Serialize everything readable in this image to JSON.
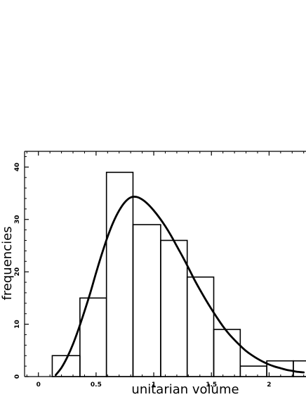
{
  "chart_data": {
    "type": "bar",
    "title": "",
    "xlabel": "unitarian volume",
    "ylabel": "frequencies",
    "xlim": [
      -0.12,
      2.32
    ],
    "ylim": [
      0,
      43
    ],
    "x_major_ticks": [
      0,
      0.5,
      1,
      1.5,
      2
    ],
    "x_tick_labels": [
      "0",
      "0.5",
      "1",
      "1.5",
      "2"
    ],
    "x_minor_step": 0.1,
    "y_major_ticks": [
      0,
      10,
      20,
      30,
      40
    ],
    "y_tick_labels": [
      "0",
      "10",
      "20",
      "30",
      "40"
    ],
    "y_minor_step": 2,
    "grid": false,
    "legend": "none",
    "bins": [
      {
        "start": 0.12,
        "end": 0.36,
        "value": 4
      },
      {
        "start": 0.36,
        "end": 0.59,
        "value": 15
      },
      {
        "start": 0.59,
        "end": 0.82,
        "value": 39
      },
      {
        "start": 0.82,
        "end": 1.06,
        "value": 29
      },
      {
        "start": 1.06,
        "end": 1.29,
        "value": 26
      },
      {
        "start": 1.29,
        "end": 1.52,
        "value": 19
      },
      {
        "start": 1.52,
        "end": 1.75,
        "value": 9
      },
      {
        "start": 1.75,
        "end": 1.98,
        "value": 2
      },
      {
        "start": 1.98,
        "end": 2.21,
        "value": 3
      },
      {
        "start": 2.21,
        "end": 2.44,
        "value": 3
      }
    ],
    "fit_curve": {
      "x": [
        0.15,
        0.2,
        0.25,
        0.3,
        0.35,
        0.4,
        0.45,
        0.5,
        0.55,
        0.6,
        0.65,
        0.7,
        0.75,
        0.8,
        0.85,
        0.9,
        0.95,
        1.0,
        1.05,
        1.1,
        1.15,
        1.2,
        1.25,
        1.3,
        1.35,
        1.4,
        1.45,
        1.5,
        1.55,
        1.6,
        1.65,
        1.7,
        1.75,
        1.8,
        1.85,
        1.9,
        1.95,
        2.0,
        2.05,
        2.1,
        2.15,
        2.2,
        2.25,
        2.3
      ],
      "y": [
        0.3,
        1.7,
        3.7,
        6.2,
        9.2,
        12.5,
        16.0,
        19.8,
        23.4,
        26.7,
        29.5,
        31.7,
        33.3,
        34.2,
        34.3,
        33.8,
        32.9,
        31.7,
        30.3,
        28.7,
        26.9,
        24.9,
        22.9,
        20.8,
        18.6,
        16.6,
        14.7,
        12.9,
        11.2,
        9.6,
        8.2,
        7.0,
        5.9,
        4.9,
        4.1,
        3.4,
        2.8,
        2.3,
        1.9,
        1.6,
        1.3,
        1.1,
        0.9,
        0.8
      ]
    }
  }
}
